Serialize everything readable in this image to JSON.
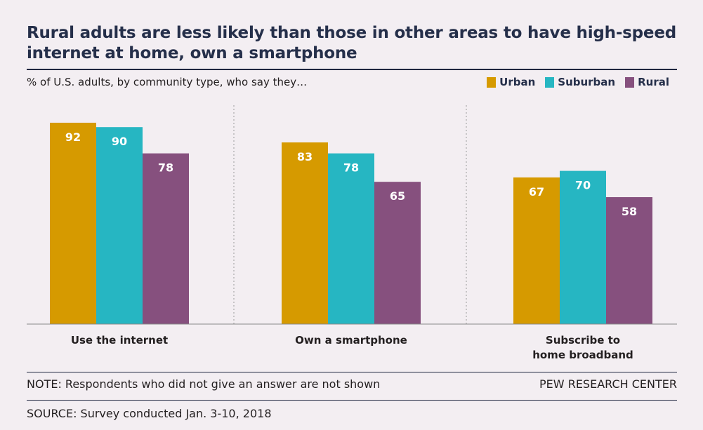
{
  "header": {
    "title": "Rural adults are less likely than those in other areas to have high-speed internet at home, own a smartphone",
    "subtitle": "%  of U.S. adults, by community type, who say they…"
  },
  "chart_data": {
    "type": "bar",
    "categories": [
      "Use the internet",
      "Own a smartphone",
      "Subscribe to\nhome broadband"
    ],
    "series": [
      {
        "name": "Urban",
        "values": [
          92,
          83,
          67
        ],
        "color": "#d69a00"
      },
      {
        "name": "Suburban",
        "values": [
          90,
          78,
          70
        ],
        "color": "#26b6c2"
      },
      {
        "name": "Rural",
        "values": [
          78,
          65,
          58
        ],
        "color": "#86507e"
      }
    ],
    "ylim": [
      0,
      100
    ],
    "legend": "top-right",
    "grid": false,
    "value_label_color": "#ffffff",
    "axis_color": "#8a8a8a",
    "separator_color": "#9a9a9a"
  },
  "footer": {
    "note": "NOTE: Respondents who did not give an answer are not shown",
    "brand": "PEW RESEARCH CENTER",
    "source": "SOURCE: Survey conducted Jan. 3-10, 2018"
  }
}
